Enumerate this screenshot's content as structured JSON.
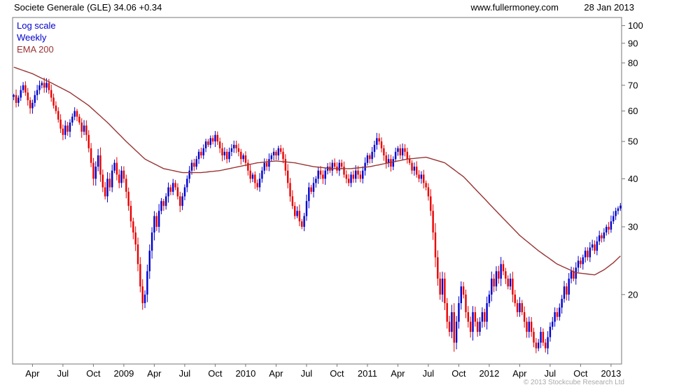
{
  "header": {
    "title": "Societe Generale (GLE) 34.06 +0.34",
    "website": "www.fullermoney.com",
    "date": "28 Jan 2013"
  },
  "legend": {
    "scale_label": "Log scale",
    "interval_label": "Weekly",
    "ema_label": "EMA 200"
  },
  "footer": {
    "copyright": "© 2013 Stockcube Research Ltd"
  },
  "chart_data": {
    "type": "candlestick",
    "instrument": "Societe Generale (GLE)",
    "last_price": 34.06,
    "change": "+0.34",
    "interval": "Weekly",
    "scale": "log",
    "ylim": [
      13.2,
      105
    ],
    "y_ticks": [
      100,
      90,
      80,
      70,
      60,
      50,
      40,
      30,
      20
    ],
    "x_ticks": [
      {
        "label": "Apr",
        "week": 8
      },
      {
        "label": "Jul",
        "week": 21
      },
      {
        "label": "Oct",
        "week": 34
      },
      {
        "label": "2009",
        "week": 47
      },
      {
        "label": "Apr",
        "week": 60
      },
      {
        "label": "Jul",
        "week": 73
      },
      {
        "label": "Oct",
        "week": 86
      },
      {
        "label": "2010",
        "week": 99
      },
      {
        "label": "Apr",
        "week": 112
      },
      {
        "label": "Jul",
        "week": 125
      },
      {
        "label": "Oct",
        "week": 138
      },
      {
        "label": "2011",
        "week": 151
      },
      {
        "label": "Apr",
        "week": 164
      },
      {
        "label": "Jul",
        "week": 177
      },
      {
        "label": "Oct",
        "week": 190
      },
      {
        "label": "2012",
        "week": 203
      },
      {
        "label": "Apr",
        "week": 216
      },
      {
        "label": "Jul",
        "week": 229
      },
      {
        "label": "Oct",
        "week": 242
      },
      {
        "label": "2013",
        "week": 255
      }
    ],
    "weekly_closes": [
      66,
      63,
      65,
      68,
      70,
      67,
      64,
      61,
      63,
      66,
      68,
      70,
      71,
      69,
      71,
      68,
      65,
      62,
      60,
      57,
      54,
      52,
      55,
      53,
      56,
      58,
      60,
      58,
      56,
      53,
      55,
      52,
      48,
      44,
      40,
      43,
      46,
      41,
      38,
      36,
      40,
      38,
      42,
      44,
      41,
      39,
      42,
      40,
      37,
      34,
      31,
      29,
      27,
      24,
      21,
      19,
      20,
      23,
      26,
      29,
      32,
      30,
      33,
      35,
      34,
      36,
      38,
      37,
      39,
      38,
      36,
      34,
      36,
      38,
      40,
      42,
      44,
      43,
      45,
      47,
      46,
      48,
      50,
      49,
      51,
      50,
      52,
      50,
      48,
      46,
      47,
      45,
      47,
      48,
      49,
      48,
      47,
      45,
      46,
      44,
      42,
      40,
      41,
      39,
      38,
      40,
      42,
      44,
      43,
      45,
      46,
      47,
      46,
      48,
      47,
      45,
      42,
      39,
      36,
      34,
      32,
      33,
      31,
      30,
      32,
      35,
      38,
      37,
      39,
      40,
      42,
      41,
      40,
      42,
      43,
      42,
      44,
      43,
      42,
      44,
      43,
      41,
      40,
      39,
      41,
      40,
      42,
      41,
      40,
      42,
      44,
      46,
      45,
      47,
      49,
      51,
      50,
      48,
      46,
      44,
      45,
      43,
      45,
      47,
      48,
      46,
      48,
      47,
      45,
      44,
      42,
      43,
      41,
      40,
      41,
      39,
      38,
      36,
      33,
      29,
      25,
      22,
      20,
      22,
      19,
      17,
      16,
      18,
      15,
      17,
      19,
      21,
      20,
      18,
      17,
      16,
      18,
      17,
      16,
      17,
      18,
      17,
      19,
      20,
      22,
      21,
      23,
      22,
      24,
      23,
      22,
      21,
      22,
      20,
      19,
      18,
      19,
      18,
      17,
      16,
      17,
      16,
      15,
      14.5,
      15,
      16,
      15,
      14.5,
      15.5,
      16.5,
      17,
      18,
      17.5,
      18.5,
      19.5,
      21,
      20,
      22,
      23,
      22,
      23.5,
      24.5,
      24,
      25,
      26,
      25,
      26.5,
      27,
      26,
      27.5,
      28.5,
      28,
      29,
      30,
      29.5,
      31,
      32,
      33,
      33.5,
      34.06
    ],
    "ema_200": [
      [
        0,
        78
      ],
      [
        8,
        75
      ],
      [
        16,
        71
      ],
      [
        24,
        67
      ],
      [
        32,
        62
      ],
      [
        40,
        56
      ],
      [
        48,
        50
      ],
      [
        56,
        45
      ],
      [
        64,
        42.5
      ],
      [
        72,
        41.5
      ],
      [
        80,
        41.5
      ],
      [
        88,
        42
      ],
      [
        96,
        43
      ],
      [
        104,
        44
      ],
      [
        112,
        44.5
      ],
      [
        120,
        44
      ],
      [
        128,
        43
      ],
      [
        136,
        42.5
      ],
      [
        144,
        42.5
      ],
      [
        152,
        43
      ],
      [
        160,
        44
      ],
      [
        168,
        45
      ],
      [
        176,
        45.5
      ],
      [
        184,
        44
      ],
      [
        192,
        40.5
      ],
      [
        200,
        36
      ],
      [
        208,
        32
      ],
      [
        216,
        28.5
      ],
      [
        224,
        26
      ],
      [
        232,
        24
      ],
      [
        240,
        22.8
      ],
      [
        248,
        22.5
      ],
      [
        252,
        23.2
      ],
      [
        256,
        24.2
      ],
      [
        259,
        25.2
      ]
    ],
    "colors": {
      "up": "#0000cd",
      "down": "#e80000",
      "ema": "#993333",
      "axis": "#777777",
      "text": "#000000"
    }
  }
}
